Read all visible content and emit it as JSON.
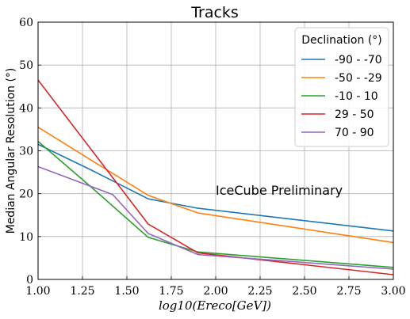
{
  "chart_data": {
    "type": "line",
    "title": "Tracks",
    "xlabel": "log10(Ereco[GeV])",
    "ylabel": "Median Angular Resolution (°)",
    "xlim": [
      1.0,
      3.0
    ],
    "ylim": [
      0,
      60
    ],
    "x_ticks": [
      "1.00",
      "1.25",
      "1.50",
      "1.75",
      "2.00",
      "2.25",
      "2.50",
      "2.75",
      "3.00"
    ],
    "y_ticks": [
      "0",
      "10",
      "20",
      "30",
      "40",
      "50",
      "60"
    ],
    "grid": true,
    "legend_title": "Declination (°)",
    "legend_position": "top-right",
    "annotation": {
      "text": "IceCube Preliminary",
      "color": "#ff0000"
    },
    "series": [
      {
        "name": "-90 - -70",
        "color": "#1f77b4",
        "x": [
          1.0,
          1.3,
          1.62,
          1.9,
          3.0
        ],
        "values": [
          31.5,
          25.5,
          18.8,
          16.6,
          11.3
        ]
      },
      {
        "name": "-50 - -29",
        "color": "#ff7f0e",
        "x": [
          1.0,
          1.3,
          1.62,
          1.9,
          3.0
        ],
        "values": [
          35.5,
          27.8,
          19.6,
          15.5,
          8.6
        ]
      },
      {
        "name": "-10 - 10",
        "color": "#2ca02c",
        "x": [
          1.0,
          1.3,
          1.62,
          1.9,
          3.0
        ],
        "values": [
          32.2,
          21.5,
          9.8,
          6.4,
          2.8
        ]
      },
      {
        "name": "29 - 50",
        "color": "#d62728",
        "x": [
          1.0,
          1.62,
          1.9,
          3.0
        ],
        "values": [
          46.5,
          12.9,
          6.2,
          1.1
        ]
      },
      {
        "name": "70 - 90",
        "color": "#9467bd",
        "x": [
          1.0,
          1.42,
          1.62,
          1.9,
          3.0
        ],
        "values": [
          26.3,
          19.8,
          10.7,
          5.8,
          2.4
        ]
      }
    ]
  }
}
